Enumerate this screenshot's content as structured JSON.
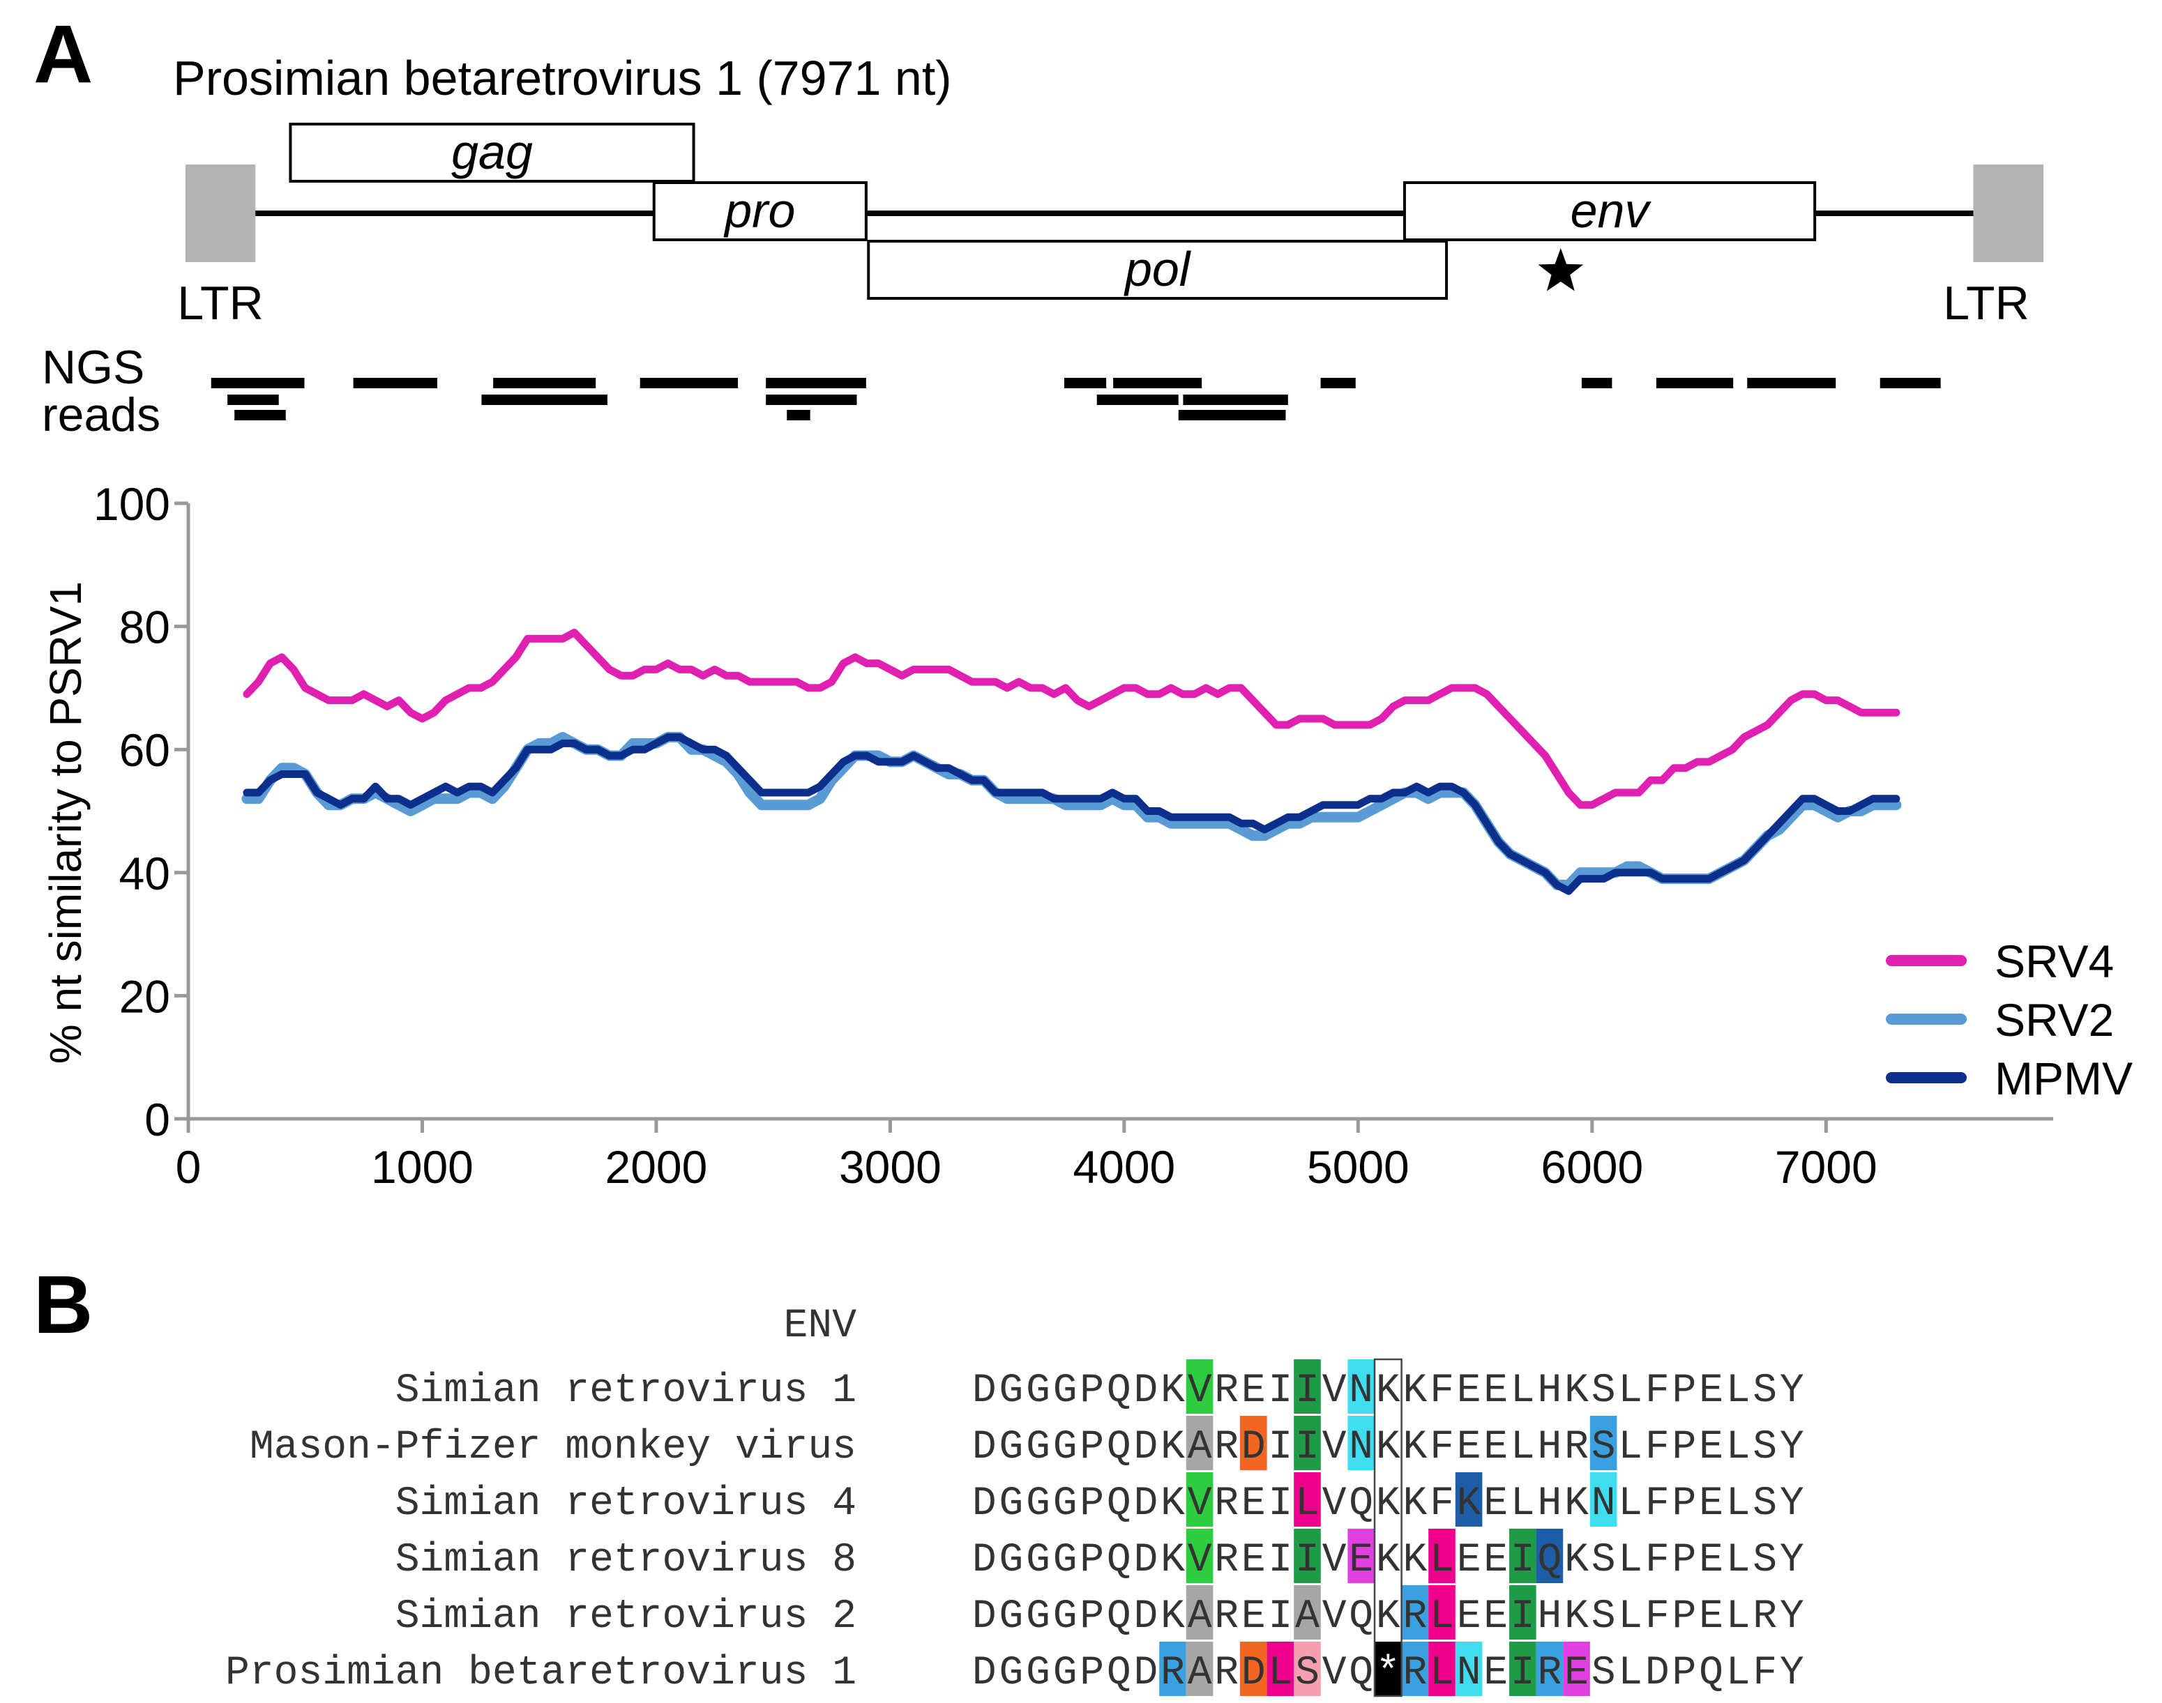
{
  "panels": {
    "a": "A",
    "b": "B"
  },
  "genome": {
    "title": "Prosimian betaretrovirus 1 (7971 nt)",
    "length": 7971,
    "ltr_left_label": "LTR",
    "ltr_right_label": "LTR",
    "genes": [
      {
        "name": "gag",
        "start": 450,
        "end": 2180,
        "row": 0
      },
      {
        "name": "pro",
        "start": 2010,
        "end": 2920,
        "row": 1
      },
      {
        "name": "env",
        "start": 5230,
        "end": 6990,
        "row": 1
      },
      {
        "name": "pol",
        "start": 2930,
        "end": 5410,
        "row": 2
      }
    ],
    "star_position": 5900,
    "ltrs": [
      {
        "start": 0,
        "end": 300
      },
      {
        "start": 7670,
        "end": 7971
      }
    ]
  },
  "ngs": {
    "label_line1": "NGS",
    "label_line2": "reads",
    "reads": [
      [
        110,
        510,
        0
      ],
      [
        180,
        400,
        1
      ],
      [
        210,
        430,
        2
      ],
      [
        720,
        1080,
        0
      ],
      [
        1320,
        1760,
        0
      ],
      [
        1270,
        1810,
        1
      ],
      [
        1950,
        2370,
        0
      ],
      [
        2490,
        2920,
        0
      ],
      [
        2490,
        2880,
        1
      ],
      [
        2580,
        2680,
        2
      ],
      [
        3770,
        3950,
        0
      ],
      [
        3980,
        4360,
        0
      ],
      [
        3910,
        4260,
        1
      ],
      [
        4280,
        4730,
        1
      ],
      [
        4260,
        4720,
        2
      ],
      [
        4870,
        5020,
        0
      ],
      [
        5990,
        6120,
        0
      ],
      [
        6310,
        6640,
        0
      ],
      [
        6700,
        7080,
        0
      ],
      [
        7270,
        7530,
        0
      ]
    ]
  },
  "chart_data": {
    "type": "line",
    "title": "",
    "xlabel": "",
    "ylabel": "% nt similarity to PSRV1",
    "xlim": [
      0,
      7971
    ],
    "ylim": [
      0,
      100
    ],
    "xticks": [
      0,
      1000,
      2000,
      3000,
      4000,
      5000,
      6000,
      7000
    ],
    "yticks": [
      0,
      20,
      40,
      60,
      80,
      100
    ],
    "grid": false,
    "legend_position": "bottom-right",
    "series": [
      {
        "name": "SRV4",
        "color": "#e020b0",
        "x": [
          250,
          300,
          350,
          400,
          450,
          500,
          550,
          600,
          650,
          700,
          750,
          800,
          850,
          900,
          950,
          1000,
          1050,
          1100,
          1150,
          1200,
          1250,
          1300,
          1350,
          1400,
          1450,
          1500,
          1550,
          1600,
          1650,
          1700,
          1750,
          1800,
          1850,
          1900,
          1950,
          2000,
          2050,
          2100,
          2150,
          2200,
          2250,
          2300,
          2350,
          2400,
          2450,
          2500,
          2550,
          2600,
          2650,
          2700,
          2750,
          2800,
          2850,
          2900,
          2950,
          3000,
          3050,
          3100,
          3150,
          3200,
          3250,
          3300,
          3350,
          3400,
          3450,
          3500,
          3550,
          3600,
          3650,
          3700,
          3750,
          3800,
          3850,
          3900,
          3950,
          4000,
          4050,
          4100,
          4150,
          4200,
          4250,
          4300,
          4350,
          4400,
          4450,
          4500,
          4550,
          4600,
          4650,
          4700,
          4750,
          4800,
          4850,
          4900,
          4950,
          5000,
          5050,
          5100,
          5150,
          5200,
          5250,
          5300,
          5350,
          5400,
          5450,
          5500,
          5550,
          5600,
          5650,
          5700,
          5750,
          5800,
          5850,
          5900,
          5950,
          6000,
          6050,
          6100,
          6150,
          6200,
          6250,
          6300,
          6350,
          6400,
          6450,
          6500,
          6550,
          6600,
          6650,
          6700,
          6750,
          6800,
          6850,
          6900,
          6950,
          7000,
          7050,
          7100,
          7150,
          7200,
          7250,
          7300
        ],
        "y": [
          69,
          71,
          74,
          75,
          73,
          70,
          69,
          68,
          68,
          68,
          69,
          68,
          67,
          68,
          66,
          65,
          66,
          68,
          69,
          70,
          70,
          71,
          73,
          75,
          78,
          78,
          78,
          78,
          79,
          77,
          75,
          73,
          72,
          72,
          73,
          73,
          74,
          73,
          73,
          72,
          73,
          72,
          72,
          71,
          71,
          71,
          71,
          71,
          70,
          70,
          71,
          74,
          75,
          74,
          74,
          73,
          72,
          73,
          73,
          73,
          73,
          72,
          71,
          71,
          71,
          70,
          71,
          70,
          70,
          69,
          70,
          68,
          67,
          68,
          69,
          70,
          70,
          69,
          69,
          70,
          69,
          69,
          70,
          69,
          70,
          70,
          68,
          66,
          64,
          64,
          65,
          65,
          65,
          64,
          64,
          64,
          64,
          65,
          67,
          68,
          68,
          68,
          69,
          70,
          70,
          70,
          69,
          67,
          65,
          63,
          61,
          59,
          56,
          53,
          51,
          51,
          52,
          53,
          53,
          53,
          55,
          55,
          57,
          57,
          58,
          58,
          59,
          60,
          62,
          63,
          64,
          66,
          68,
          69,
          69,
          68,
          68,
          67,
          66,
          66,
          66,
          66
        ],
        "line_width": 11
      },
      {
        "name": "SRV2",
        "color": "#5b9bd5",
        "x": [
          250,
          300,
          350,
          400,
          450,
          500,
          550,
          600,
          650,
          700,
          750,
          800,
          850,
          900,
          950,
          1000,
          1050,
          1100,
          1150,
          1200,
          1250,
          1300,
          1350,
          1400,
          1450,
          1500,
          1550,
          1600,
          1650,
          1700,
          1750,
          1800,
          1850,
          1900,
          1950,
          2000,
          2050,
          2100,
          2150,
          2200,
          2250,
          2300,
          2350,
          2400,
          2450,
          2500,
          2550,
          2600,
          2650,
          2700,
          2750,
          2800,
          2850,
          2900,
          2950,
          3000,
          3050,
          3100,
          3150,
          3200,
          3250,
          3300,
          3350,
          3400,
          3450,
          3500,
          3550,
          3600,
          3650,
          3700,
          3750,
          3800,
          3850,
          3900,
          3950,
          4000,
          4050,
          4100,
          4150,
          4200,
          4250,
          4300,
          4350,
          4400,
          4450,
          4500,
          4550,
          4600,
          4650,
          4700,
          4750,
          4800,
          4850,
          4900,
          4950,
          5000,
          5050,
          5100,
          5150,
          5200,
          5250,
          5300,
          5350,
          5400,
          5450,
          5500,
          5550,
          5600,
          5650,
          5700,
          5750,
          5800,
          5850,
          5900,
          5950,
          6000,
          6050,
          6100,
          6150,
          6200,
          6250,
          6300,
          6350,
          6400,
          6450,
          6500,
          6550,
          6600,
          6650,
          6700,
          6750,
          6800,
          6850,
          6900,
          6950,
          7000,
          7050,
          7100,
          7150,
          7200,
          7250,
          7300
        ],
        "y": [
          52,
          52,
          55,
          57,
          57,
          56,
          53,
          51,
          51,
          52,
          52,
          53,
          52,
          51,
          50,
          51,
          52,
          52,
          52,
          53,
          53,
          52,
          54,
          57,
          60,
          61,
          61,
          62,
          61,
          60,
          60,
          59,
          59,
          61,
          61,
          61,
          62,
          62,
          60,
          60,
          59,
          58,
          56,
          53,
          51,
          51,
          51,
          51,
          51,
          52,
          55,
          57,
          59,
          59,
          59,
          58,
          58,
          59,
          58,
          57,
          56,
          56,
          55,
          55,
          53,
          52,
          52,
          52,
          52,
          52,
          51,
          51,
          51,
          51,
          52,
          51,
          51,
          49,
          49,
          48,
          48,
          48,
          48,
          48,
          48,
          47,
          46,
          46,
          47,
          48,
          48,
          49,
          49,
          49,
          49,
          49,
          50,
          51,
          52,
          53,
          53,
          52,
          53,
          53,
          53,
          51,
          48,
          45,
          43,
          42,
          41,
          40,
          38,
          38,
          40,
          40,
          40,
          40,
          41,
          41,
          40,
          39,
          39,
          39,
          39,
          39,
          40,
          41,
          42,
          44,
          46,
          47,
          49,
          51,
          51,
          50,
          49,
          50,
          50,
          51,
          51,
          51
        ],
        "line_width": 15
      },
      {
        "name": "MPMV",
        "color": "#0d2f8c",
        "x": [
          250,
          300,
          350,
          400,
          450,
          500,
          550,
          600,
          650,
          700,
          750,
          800,
          850,
          900,
          950,
          1000,
          1050,
          1100,
          1150,
          1200,
          1250,
          1300,
          1350,
          1400,
          1450,
          1500,
          1550,
          1600,
          1650,
          1700,
          1750,
          1800,
          1850,
          1900,
          1950,
          2000,
          2050,
          2100,
          2150,
          2200,
          2250,
          2300,
          2350,
          2400,
          2450,
          2500,
          2550,
          2600,
          2650,
          2700,
          2750,
          2800,
          2850,
          2900,
          2950,
          3000,
          3050,
          3100,
          3150,
          3200,
          3250,
          3300,
          3350,
          3400,
          3450,
          3500,
          3550,
          3600,
          3650,
          3700,
          3750,
          3800,
          3850,
          3900,
          3950,
          4000,
          4050,
          4100,
          4150,
          4200,
          4250,
          4300,
          4350,
          4400,
          4450,
          4500,
          4550,
          4600,
          4650,
          4700,
          4750,
          4800,
          4850,
          4900,
          4950,
          5000,
          5050,
          5100,
          5150,
          5200,
          5250,
          5300,
          5350,
          5400,
          5450,
          5500,
          5550,
          5600,
          5650,
          5700,
          5750,
          5800,
          5850,
          5900,
          5950,
          6000,
          6050,
          6100,
          6150,
          6200,
          6250,
          6300,
          6350,
          6400,
          6450,
          6500,
          6550,
          6600,
          6650,
          6700,
          6750,
          6800,
          6850,
          6900,
          6950,
          7000,
          7050,
          7100,
          7150,
          7200,
          7250,
          7300
        ],
        "y": [
          53,
          53,
          55,
          56,
          56,
          56,
          53,
          52,
          51,
          52,
          52,
          54,
          52,
          52,
          51,
          52,
          53,
          54,
          53,
          54,
          54,
          53,
          55,
          57,
          60,
          60,
          60,
          61,
          61,
          60,
          60,
          59,
          59,
          60,
          60,
          61,
          62,
          62,
          61,
          60,
          60,
          59,
          57,
          55,
          53,
          53,
          53,
          53,
          53,
          54,
          56,
          58,
          59,
          59,
          58,
          58,
          58,
          59,
          58,
          57,
          57,
          56,
          55,
          55,
          53,
          53,
          53,
          53,
          53,
          52,
          52,
          52,
          52,
          52,
          53,
          52,
          52,
          50,
          50,
          49,
          49,
          49,
          49,
          49,
          49,
          48,
          48,
          47,
          48,
          49,
          49,
          50,
          51,
          51,
          51,
          51,
          52,
          52,
          53,
          53,
          54,
          53,
          54,
          54,
          53,
          51,
          48,
          45,
          43,
          42,
          41,
          40,
          38,
          37,
          39,
          39,
          39,
          40,
          40,
          40,
          40,
          39,
          39,
          39,
          39,
          39,
          40,
          41,
          42,
          44,
          46,
          48,
          50,
          52,
          52,
          51,
          50,
          50,
          51,
          52,
          52,
          52
        ],
        "line_width": 11
      }
    ]
  },
  "alignment": {
    "header": "ENV",
    "sequences": [
      {
        "name": "Simian retrovirus 1",
        "residues": "DGGGPQDKVREIIVNKKFEELHKSLFPELSY"
      },
      {
        "name": "Mason-Pfizer monkey virus",
        "residues": "DGGGPQDKARDIIVNKKFEELHRSLFPELSY"
      },
      {
        "name": "Simian retrovirus 4",
        "residues": "DGGGPQDKVREILVQKKFKELHKNLFPELSY"
      },
      {
        "name": "Simian retrovirus 8",
        "residues": "DGGGPQDKVREIIVEKKLEEIQKSLFPELSY"
      },
      {
        "name": "Simian retrovirus 2",
        "residues": "DGGGPQDKAREIAVQKRLEEIHKSLFPELRY"
      },
      {
        "name": "Prosimian betaretrovirus 1",
        "residues": "DGGGPQDRARDLSVQ*RLNEIRESLDPQLFY"
      }
    ],
    "highlights": [
      {
        "row": 0,
        "col": 8,
        "color": "#2ecc40"
      },
      {
        "row": 0,
        "col": 12,
        "color": "#1f9a47"
      },
      {
        "row": 0,
        "col": 14,
        "color": "#40dcf0"
      },
      {
        "row": 1,
        "col": 8,
        "color": "#a6a6a6"
      },
      {
        "row": 1,
        "col": 10,
        "color": "#f26522"
      },
      {
        "row": 1,
        "col": 12,
        "color": "#1f9a47"
      },
      {
        "row": 1,
        "col": 14,
        "color": "#40dcf0"
      },
      {
        "row": 1,
        "col": 23,
        "color": "#3aa0e0"
      },
      {
        "row": 2,
        "col": 8,
        "color": "#2ecc40"
      },
      {
        "row": 2,
        "col": 12,
        "color": "#ec008c"
      },
      {
        "row": 2,
        "col": 18,
        "color": "#1e5ea8"
      },
      {
        "row": 2,
        "col": 23,
        "color": "#40dcf0"
      },
      {
        "row": 3,
        "col": 8,
        "color": "#2ecc40"
      },
      {
        "row": 3,
        "col": 12,
        "color": "#1f9a47"
      },
      {
        "row": 3,
        "col": 14,
        "color": "#e040e0"
      },
      {
        "row": 3,
        "col": 17,
        "color": "#ec008c"
      },
      {
        "row": 3,
        "col": 20,
        "color": "#1f9a47"
      },
      {
        "row": 3,
        "col": 21,
        "color": "#1e5ea8"
      },
      {
        "row": 4,
        "col": 8,
        "color": "#a6a6a6"
      },
      {
        "row": 4,
        "col": 12,
        "color": "#a6a6a6"
      },
      {
        "row": 4,
        "col": 16,
        "color": "#3aa0e0"
      },
      {
        "row": 4,
        "col": 17,
        "color": "#ec008c"
      },
      {
        "row": 4,
        "col": 20,
        "color": "#1f9a47"
      },
      {
        "row": 5,
        "col": 7,
        "color": "#3aa0e0"
      },
      {
        "row": 5,
        "col": 8,
        "color": "#a6a6a6"
      },
      {
        "row": 5,
        "col": 10,
        "color": "#f26522"
      },
      {
        "row": 5,
        "col": 11,
        "color": "#ec008c"
      },
      {
        "row": 5,
        "col": 12,
        "color": "#f4a0b0"
      },
      {
        "row": 5,
        "col": 15,
        "color": "#000000"
      },
      {
        "row": 5,
        "col": 16,
        "color": "#3aa0e0"
      },
      {
        "row": 5,
        "col": 17,
        "color": "#ec008c"
      },
      {
        "row": 5,
        "col": 18,
        "color": "#40dcf0"
      },
      {
        "row": 5,
        "col": 20,
        "color": "#1f9a47"
      },
      {
        "row": 5,
        "col": 21,
        "color": "#3aa0e0"
      },
      {
        "row": 5,
        "col": 22,
        "color": "#e040e0"
      }
    ],
    "boxed_column": 15
  }
}
